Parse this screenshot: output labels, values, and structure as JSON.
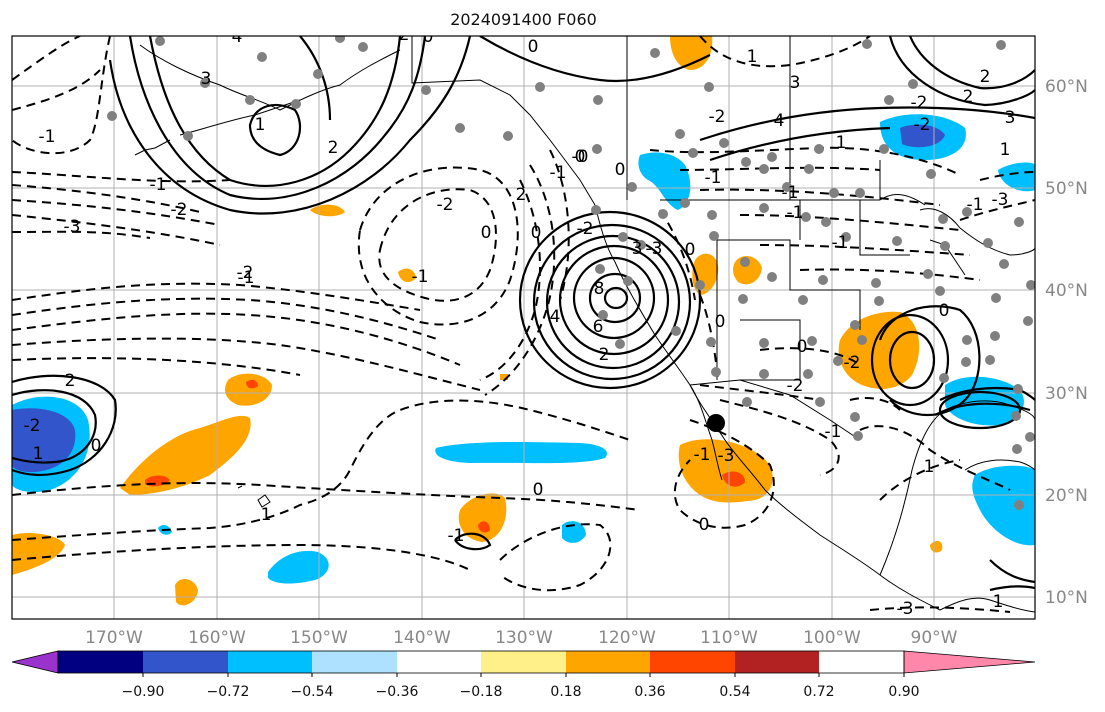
{
  "title": "2024091400 F060",
  "lon_labels": [
    "170°W",
    "160°W",
    "150°W",
    "140°W",
    "130°W",
    "120°W",
    "110°W",
    "100°W",
    "90°W"
  ],
  "lat_labels": [
    "60°N",
    "50°N",
    "40°N",
    "30°N",
    "20°N",
    "10°N"
  ],
  "colorbar": {
    "colors": [
      "#9933cc",
      "#000080",
      "#3355cc",
      "#00bfff",
      "#aee0ff",
      "#ffffff",
      "#fff08a",
      "#ffa500",
      "#ff4500",
      "#b22222",
      "#ff88aa"
    ],
    "labels": [
      "−0.90",
      "−0.72",
      "−0.54",
      "−0.36",
      "−0.18",
      "0.18",
      "0.36",
      "0.54",
      "0.72",
      "0.90"
    ]
  },
  "contour_labels": [
    "-1",
    "-2",
    "-3",
    "3",
    "4",
    "2",
    "1",
    "0",
    "-1",
    "0",
    "2",
    "1",
    "3",
    "4",
    "-2",
    "-1",
    "0",
    "1",
    "-3",
    "-2",
    "2",
    "-2",
    "2",
    "8",
    "6",
    "4",
    "2",
    "3",
    "0",
    "0",
    "-1",
    "2",
    "0",
    "-2",
    "1",
    "0",
    "-1",
    "-3",
    "-2",
    "-1",
    "1",
    "0",
    "1",
    "-1",
    "-2",
    "-3",
    "1",
    "1",
    "-1",
    "-1",
    "-1",
    "0",
    "-3",
    "0",
    "-1",
    "0",
    "-2",
    "0",
    "0",
    "-1",
    "2",
    "-2",
    "-1",
    "-2",
    "3",
    "-0"
  ]
}
